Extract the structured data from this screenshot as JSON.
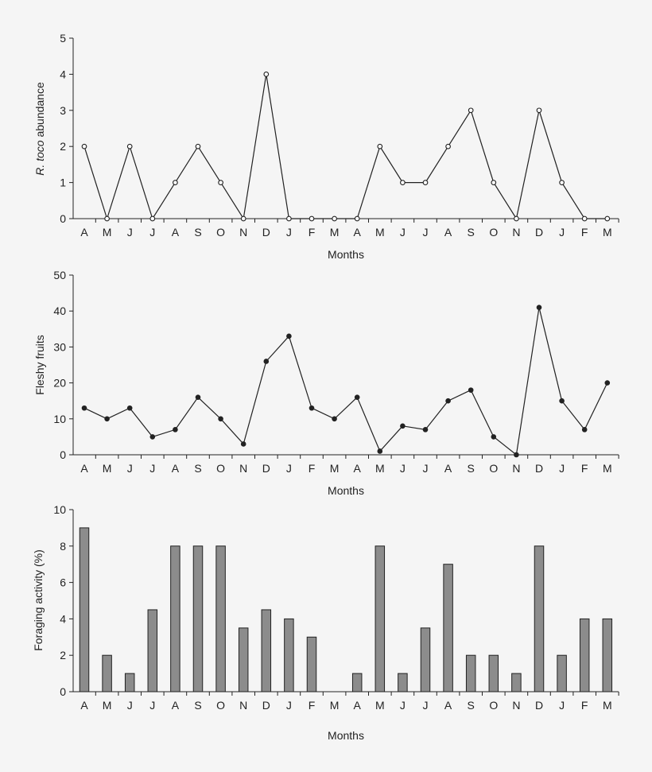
{
  "chart_data": [
    {
      "type": "line",
      "categories": [
        "A",
        "M",
        "J",
        "J",
        "A",
        "S",
        "O",
        "N",
        "D",
        "J",
        "F",
        "M",
        "A",
        "M",
        "J",
        "J",
        "A",
        "S",
        "O",
        "N",
        "D",
        "J",
        "F",
        "M"
      ],
      "values": [
        2,
        0,
        2,
        0,
        1,
        2,
        1,
        0,
        4,
        0,
        0,
        0,
        0,
        2,
        1,
        1,
        2,
        3,
        1,
        0,
        3,
        1,
        0,
        0
      ],
      "ylabel_italic": "R. toco",
      "ylabel_rest": " abundance",
      "xlabel": "Months",
      "ylim": [
        0,
        5
      ],
      "yticks": [
        0,
        1,
        2,
        3,
        4,
        5
      ],
      "marker": "open-circle"
    },
    {
      "type": "line",
      "categories": [
        "A",
        "M",
        "J",
        "J",
        "A",
        "S",
        "O",
        "N",
        "D",
        "J",
        "F",
        "M",
        "A",
        "M",
        "J",
        "J",
        "A",
        "S",
        "O",
        "N",
        "D",
        "J",
        "F",
        "M"
      ],
      "values": [
        13,
        10,
        13,
        5,
        7,
        16,
        10,
        3,
        26,
        33,
        13,
        10,
        16,
        1,
        8,
        7,
        15,
        18,
        5,
        0,
        41,
        15,
        7,
        20
      ],
      "ylabel": "Fleshy fruits",
      "xlabel": "Months",
      "ylim": [
        0,
        50
      ],
      "yticks": [
        0,
        10,
        20,
        30,
        40,
        50
      ],
      "marker": "filled-circle"
    },
    {
      "type": "bar",
      "categories": [
        "A",
        "M",
        "J",
        "J",
        "A",
        "S",
        "O",
        "N",
        "D",
        "J",
        "F",
        "M",
        "A",
        "M",
        "J",
        "J",
        "A",
        "S",
        "O",
        "N",
        "D",
        "J",
        "F",
        "M"
      ],
      "values": [
        9,
        2,
        1,
        4.5,
        8,
        8,
        8,
        3.5,
        4.5,
        4,
        3,
        0,
        1,
        8,
        1,
        3.5,
        7,
        2,
        2,
        1,
        8,
        2,
        4,
        4
      ],
      "ylabel": "Foraging activity (%)",
      "xlabel": "Months",
      "ylim": [
        0,
        10
      ],
      "yticks": [
        0,
        2,
        4,
        6,
        8,
        10
      ],
      "bar_color": "#8c8c8c"
    }
  ]
}
